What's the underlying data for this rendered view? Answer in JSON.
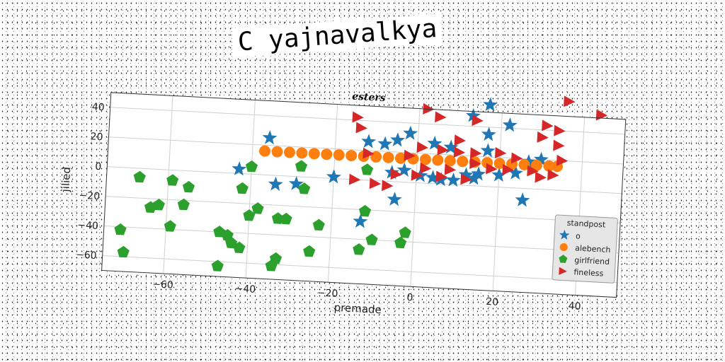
{
  "title": "C yajnavalkya",
  "chart_data": {
    "type": "scatter",
    "title": "esters",
    "xlabel": "premade",
    "ylabel": "jilied",
    "xlim": [
      -75,
      50
    ],
    "ylim": [
      -70,
      50
    ],
    "xticks": [
      -60,
      -40,
      -20,
      0,
      20,
      40
    ],
    "yticks": [
      -60,
      -40,
      -20,
      0,
      20,
      40
    ],
    "grid": true,
    "legend": {
      "title": "standpost",
      "placement": "lower-right"
    },
    "series": [
      {
        "name": "o",
        "marker": "star",
        "color": "#1f77b4",
        "points": [
          [
            17,
            55
          ],
          [
            13,
            47
          ],
          [
            22,
            42
          ],
          [
            17,
            35
          ],
          [
            -2,
            33
          ],
          [
            -5,
            28
          ],
          [
            -8,
            25
          ],
          [
            -12,
            26
          ],
          [
            4,
            27
          ],
          [
            -36,
            25
          ],
          [
            8,
            25
          ],
          [
            17,
            24
          ],
          [
            -3,
            8
          ],
          [
            -6,
            6
          ],
          [
            1,
            5
          ],
          [
            4,
            4
          ],
          [
            9,
            3
          ],
          [
            12,
            7
          ],
          [
            15,
            8
          ],
          [
            20,
            8
          ],
          [
            24,
            10
          ],
          [
            27,
            18
          ],
          [
            30,
            20
          ],
          [
            -43,
            3
          ],
          [
            -34,
            -6
          ],
          [
            -29,
            -5
          ],
          [
            -20,
            1
          ],
          [
            -5,
            -12
          ],
          [
            26,
            -8
          ],
          [
            -13,
            -28
          ],
          [
            6,
            3
          ],
          [
            14,
            5
          ]
        ]
      },
      {
        "name": "alebench",
        "marker": "circle",
        "color": "#ff7f0e",
        "points": [
          [
            -37,
            16
          ],
          [
            -34,
            16
          ],
          [
            -31,
            16
          ],
          [
            -28,
            16
          ],
          [
            -25,
            16
          ],
          [
            -22,
            16
          ],
          [
            -19,
            16
          ],
          [
            -16,
            16
          ],
          [
            -13,
            16
          ],
          [
            -10,
            16
          ],
          [
            -7,
            16
          ],
          [
            -4,
            16
          ],
          [
            -1,
            16
          ],
          [
            2,
            16
          ],
          [
            5,
            16
          ],
          [
            8,
            16
          ],
          [
            11,
            16
          ],
          [
            14,
            16
          ],
          [
            17,
            16
          ],
          [
            20,
            16
          ],
          [
            23,
            16
          ],
          [
            26,
            16
          ],
          [
            29,
            16
          ],
          [
            32,
            16
          ],
          [
            34,
            16
          ]
        ]
      },
      {
        "name": "girlfriend",
        "marker": "pentagon",
        "color": "#2ca02c",
        "points": [
          [
            -67,
            -6
          ],
          [
            -59,
            -7
          ],
          [
            -55,
            -11
          ],
          [
            -62,
            -24
          ],
          [
            -64,
            -26
          ],
          [
            -56,
            -23
          ],
          [
            -59,
            -38
          ],
          [
            -42,
            -10
          ],
          [
            -40,
            -28
          ],
          [
            -38,
            -23
          ],
          [
            -33,
            -29
          ],
          [
            -31,
            -29
          ],
          [
            -27,
            -8
          ],
          [
            -28,
            7
          ],
          [
            -40,
            5
          ],
          [
            -12,
            7
          ],
          [
            -12,
            -21
          ],
          [
            -23,
            -32
          ],
          [
            -10,
            -40
          ],
          [
            -3,
            -41
          ],
          [
            -2,
            -34
          ],
          [
            -13,
            -47
          ],
          [
            -25,
            -50
          ],
          [
            -33,
            -56
          ],
          [
            -34,
            -61
          ],
          [
            -42,
            -50
          ],
          [
            -44,
            -47
          ],
          [
            -45,
            -42
          ],
          [
            -47,
            -40
          ],
          [
            -47,
            -63
          ],
          [
            -71,
            -42
          ],
          [
            -70,
            -57
          ]
        ]
      },
      {
        "name": "fineless",
        "marker": "triangle-right",
        "color": "#d62728",
        "points": [
          [
            36,
            60
          ],
          [
            44,
            52
          ],
          [
            2,
            50
          ],
          [
            -15,
            42
          ],
          [
            5,
            45
          ],
          [
            14,
            44
          ],
          [
            31,
            43
          ],
          [
            34,
            40
          ],
          [
            -14,
            35
          ],
          [
            10,
            30
          ],
          [
            30,
            35
          ],
          [
            34,
            30
          ],
          [
            1,
            24
          ],
          [
            6,
            23
          ],
          [
            10,
            22
          ],
          [
            14,
            22
          ],
          [
            20,
            23
          ],
          [
            24,
            20
          ],
          [
            35,
            20
          ],
          [
            -2,
            18
          ],
          [
            -12,
            18
          ],
          [
            2,
            10
          ],
          [
            8,
            10
          ],
          [
            14,
            15
          ],
          [
            18,
            12
          ],
          [
            22,
            12
          ],
          [
            28,
            12
          ],
          [
            30,
            8
          ],
          [
            33,
            10
          ],
          [
            -5,
            5
          ],
          [
            0,
            5
          ],
          [
            6,
            5
          ],
          [
            12,
            4
          ],
          [
            -15,
            0
          ],
          [
            -10,
            -2
          ],
          [
            -7,
            -3
          ]
        ]
      }
    ]
  }
}
